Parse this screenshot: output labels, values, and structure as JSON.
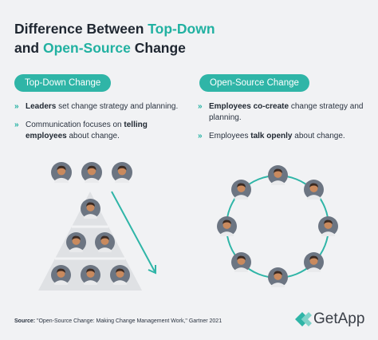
{
  "title": {
    "line1_prefix": "Difference Between ",
    "line1_highlight": "Top-Down",
    "line2_prefix": "and ",
    "line2_highlight": "Open-Source",
    "line2_suffix": " Change"
  },
  "left": {
    "label": "Top-Down Change",
    "bullets": [
      {
        "bold": "Leaders",
        "text": " set change strategy and planning."
      },
      {
        "text": "Communication focuses on ",
        "bold": "telling employees",
        "text2": " about change."
      }
    ]
  },
  "right": {
    "label": "Open-Source Change",
    "bullets": [
      {
        "bold": "Employees co-create",
        "text": " change strategy and planning."
      },
      {
        "text": "Employees ",
        "bold": "talk openly",
        "text2": " about change."
      }
    ]
  },
  "bullet_marker": "»",
  "source": {
    "label": "Source:",
    "text": " \"Open-Source Change: Making Change Management Work,\" Gartner 2021"
  },
  "brand": {
    "name": "GetApp"
  },
  "colors": {
    "accent": "#21b1a1",
    "pill": "#2fb5a7",
    "ring": "#2fb5a7",
    "pyramid": "#dfe1e4",
    "avatar_bg": "#6c7582"
  }
}
